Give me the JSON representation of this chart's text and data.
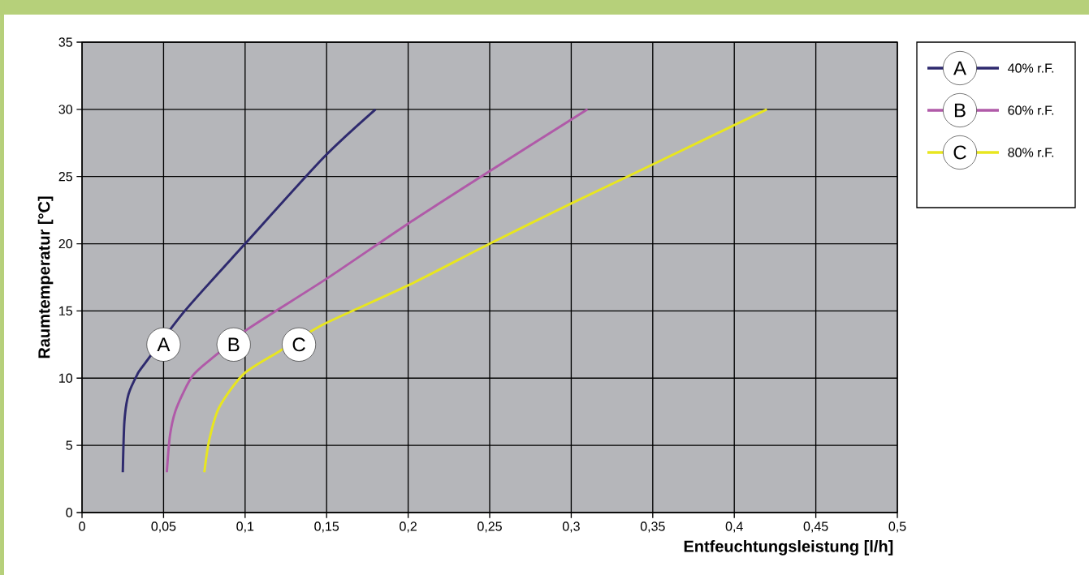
{
  "chart_data": {
    "type": "line",
    "xlabel": "Entfeuchtungsleistung [l/h]",
    "ylabel": "Raumtemperatur [°C]",
    "xlim": [
      0,
      0.5
    ],
    "ylim": [
      0,
      35
    ],
    "xticks": [
      0,
      {
        "value": 0.05,
        "label": "0,05"
      },
      {
        "value": 0.1,
        "label": "0,1"
      },
      {
        "value": 0.15,
        "label": "0,15"
      },
      {
        "value": 0.2,
        "label": "0,2"
      },
      {
        "value": 0.25,
        "label": "0,25"
      },
      {
        "value": 0.3,
        "label": "0,3"
      },
      {
        "value": 0.35,
        "label": "0,35"
      },
      {
        "value": 0.4,
        "label": "0,4"
      },
      {
        "value": 0.45,
        "label": "0,45"
      },
      {
        "value": 0.5,
        "label": "0,5"
      }
    ],
    "yticks": [
      0,
      5,
      10,
      15,
      20,
      25,
      30,
      35
    ],
    "grid": true,
    "legend": "right",
    "series": [
      {
        "name": "40% r.F.",
        "color": "#2e2a6e",
        "x": [
          0.025,
          0.026,
          0.0285,
          0.034,
          0.038,
          0.063,
          0.1,
          0.148,
          0.18
        ],
        "values": [
          3,
          6.8,
          8.8,
          10.3,
          11,
          15,
          20,
          26.4,
          30
        ]
      },
      {
        "name": "60% r.F.",
        "color": "#b05aa8",
        "x": [
          0.052,
          0.054,
          0.058,
          0.068,
          0.083,
          0.101,
          0.15,
          0.2,
          0.25,
          0.31
        ],
        "values": [
          3,
          5.8,
          7.8,
          10.2,
          11.8,
          13.6,
          17.4,
          21.5,
          25.4,
          30
        ]
      },
      {
        "name": "80% r.F.",
        "color": "#e8e61f",
        "x": [
          0.075,
          0.078,
          0.084,
          0.099,
          0.121,
          0.148,
          0.2,
          0.25,
          0.3,
          0.35,
          0.42
        ],
        "values": [
          3,
          5.4,
          7.8,
          10.3,
          12,
          14,
          16.9,
          20,
          23,
          25.9,
          30
        ]
      }
    ],
    "annotations": [
      {
        "text": "A",
        "x": 0.05,
        "y": 12.5
      },
      {
        "text": "B",
        "x": 0.093,
        "y": 12.5
      },
      {
        "text": "C",
        "x": 0.133,
        "y": 12.5
      }
    ]
  }
}
